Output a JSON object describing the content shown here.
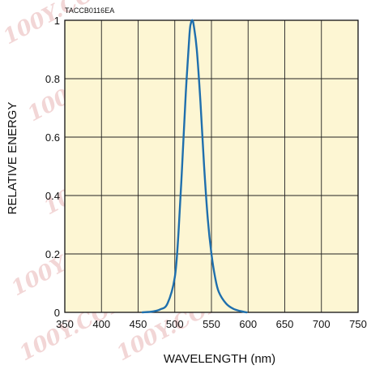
{
  "chart_data": {
    "type": "line",
    "figure_code": "TACCB0116EA",
    "xlabel": "WAVELENGTH (nm)",
    "ylabel": "RELATIVE ENERGY",
    "xlim": [
      350,
      750
    ],
    "ylim": [
      0,
      1
    ],
    "x_ticks": [
      "350",
      "400",
      "450",
      "500",
      "550",
      "600",
      "650",
      "700",
      "750"
    ],
    "y_ticks": [
      "0",
      "0.2",
      "0.4",
      "0.6",
      "0.8",
      "1"
    ],
    "grid": true,
    "legend": "none",
    "background_color": "#fdf6d3",
    "series": [
      {
        "color": "#1f6fad",
        "x": [
          456,
          470,
          480,
          490,
          500,
          505,
          510,
          515,
          520,
          522,
          524,
          526,
          530,
          535,
          540,
          545,
          550,
          555,
          560,
          570,
          580,
          590,
          598
        ],
        "y": [
          0,
          0.003,
          0.01,
          0.03,
          0.12,
          0.27,
          0.5,
          0.75,
          0.95,
          0.99,
          1.0,
          0.98,
          0.9,
          0.72,
          0.5,
          0.32,
          0.2,
          0.12,
          0.07,
          0.03,
          0.012,
          0.004,
          0
        ]
      }
    ]
  },
  "watermarks": [
    "100Y.COM.TW",
    "100Y.COM.TW",
    "100Y.COM.TW",
    "100Y.COM.TW",
    "100Y.COM.TW",
    "100Y.COM.TW"
  ]
}
